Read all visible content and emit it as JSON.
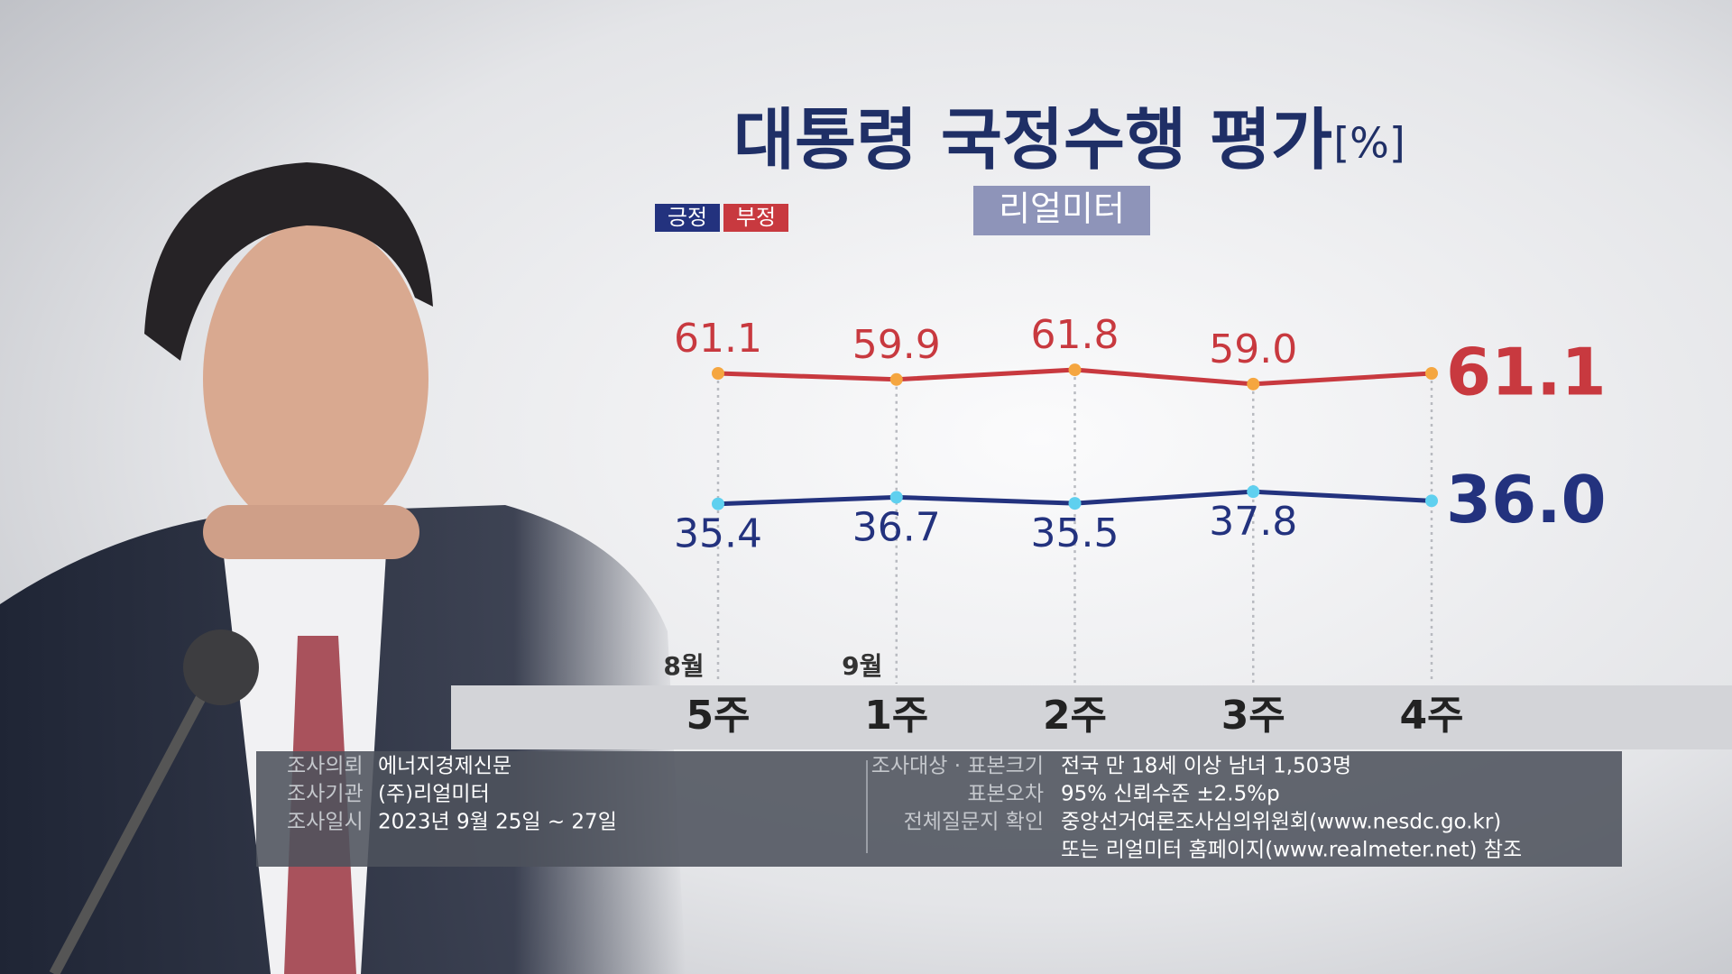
{
  "chart_data": {
    "type": "line",
    "title": "대통령 국정수행 평가",
    "unit": "[%]",
    "subtitle": "리얼미터",
    "categories": [
      "5주",
      "1주",
      "2주",
      "3주",
      "4주"
    ],
    "periods": [
      "8월",
      "9월",
      null,
      null,
      null
    ],
    "series": [
      {
        "name": "부정",
        "color": "#c8393f",
        "point_color": "#f5a640",
        "values": [
          61.1,
          59.9,
          61.8,
          59.0,
          61.1
        ],
        "value_labels": [
          "61.1",
          "59.9",
          "61.8",
          "59.0",
          "61.1"
        ]
      },
      {
        "name": "긍정",
        "color": "#23327e",
        "point_color": "#5fd0ef",
        "values": [
          35.4,
          36.7,
          35.5,
          37.8,
          36.0
        ],
        "value_labels": [
          "35.4",
          "36.7",
          "35.5",
          "37.8",
          "36.0"
        ]
      }
    ],
    "ylim": [
      0,
      100
    ]
  },
  "notes": {
    "left": [
      {
        "label": "조사의뢰",
        "lines": [
          "에너지경제신문"
        ]
      },
      {
        "label": "조사기관",
        "lines": [
          "(주)리얼미터"
        ]
      },
      {
        "label": "조사일시",
        "lines": [
          "2023년 9월 25일 ~ 27일"
        ]
      }
    ],
    "right": [
      {
        "label": "조사대상 · 표본크기",
        "lines": [
          "전국 만 18세 이상 남녀 1,503명"
        ]
      },
      {
        "label": "표본오차",
        "lines": [
          "95% 신뢰수준 ±2.5%p"
        ]
      },
      {
        "label": "전체질문지 확인",
        "lines": [
          "중앙선거여론조사심의위원회(www.nesdc.go.kr)",
          "또는 리얼미터 홈페이지(www.realmeter.net) 참조"
        ]
      }
    ]
  }
}
